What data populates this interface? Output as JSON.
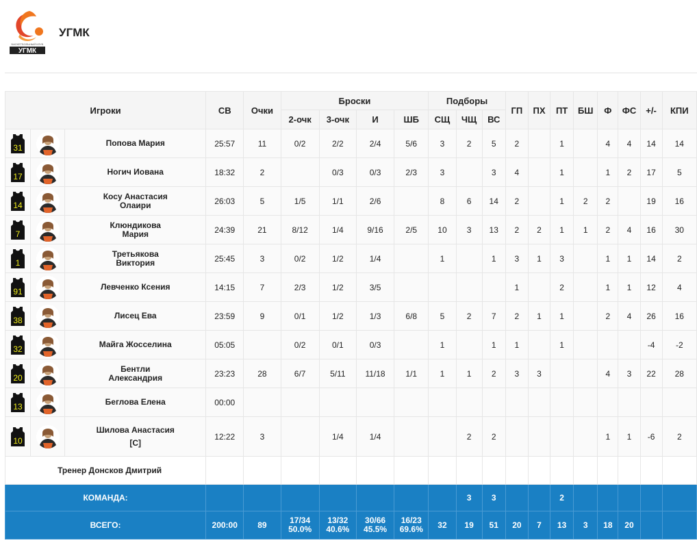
{
  "team": {
    "name": "УГМК",
    "logo_text_small": "БАСКЕТБОЛЬНЫЙ КЛУБ",
    "logo_text": "УГМК"
  },
  "headers": {
    "players": "Игроки",
    "sv": "СВ",
    "pts": "Очки",
    "shots": "Броски",
    "rebounds": "Подборы",
    "two": "2-очк",
    "three": "3-очк",
    "fg": "И",
    "ft": "ШБ",
    "off": "СЩ",
    "def": "ЧЩ",
    "tot": "ВС",
    "ast": "ГП",
    "to": "ПХ",
    "stl": "ПТ",
    "blk": "БШ",
    "pf": "Ф",
    "fd": "ФС",
    "pm": "+/-",
    "eff": "КПИ"
  },
  "players": [
    {
      "num": "31",
      "name": "Попова Мария",
      "sv": "25:57",
      "pts": "11",
      "two": "0/2",
      "three": "2/2",
      "fg": "2/4",
      "ft": "5/6",
      "off": "3",
      "def": "2",
      "tot": "5",
      "ast": "2",
      "to": "",
      "stl": "1",
      "blk": "",
      "pf": "4",
      "fd": "4",
      "pm": "14",
      "eff": "14"
    },
    {
      "num": "17",
      "name": "Ногич Иована",
      "sv": "18:32",
      "pts": "2",
      "two": "",
      "three": "0/3",
      "fg": "0/3",
      "ft": "2/3",
      "off": "3",
      "def": "",
      "tot": "3",
      "ast": "4",
      "to": "",
      "stl": "1",
      "blk": "",
      "pf": "1",
      "fd": "2",
      "pm": "17",
      "eff": "5"
    },
    {
      "num": "14",
      "name_l1": "Косу Анастасия",
      "name_l2": "Олаири",
      "sv": "26:03",
      "pts": "5",
      "two": "1/5",
      "three": "1/1",
      "fg": "2/6",
      "ft": "",
      "off": "8",
      "def": "6",
      "tot": "14",
      "ast": "2",
      "to": "",
      "stl": "1",
      "blk": "2",
      "pf": "2",
      "fd": "",
      "pm": "19",
      "eff": "16"
    },
    {
      "num": "7",
      "name_l1": "Клюндикова",
      "name_l2": "Мария",
      "sv": "24:39",
      "pts": "21",
      "two": "8/12",
      "three": "1/4",
      "fg": "9/16",
      "ft": "2/5",
      "off": "10",
      "def": "3",
      "tot": "13",
      "ast": "2",
      "to": "2",
      "stl": "1",
      "blk": "1",
      "pf": "2",
      "fd": "4",
      "pm": "16",
      "eff": "30"
    },
    {
      "num": "1",
      "name_l1": "Третьякова",
      "name_l2": "Виктория",
      "sv": "25:45",
      "pts": "3",
      "two": "0/2",
      "three": "1/2",
      "fg": "1/4",
      "ft": "",
      "off": "1",
      "def": "",
      "tot": "1",
      "ast": "3",
      "to": "1",
      "stl": "3",
      "blk": "",
      "pf": "1",
      "fd": "1",
      "pm": "14",
      "eff": "2"
    },
    {
      "num": "91",
      "name": "Левченко Ксения",
      "sv": "14:15",
      "pts": "7",
      "two": "2/3",
      "three": "1/2",
      "fg": "3/5",
      "ft": "",
      "off": "",
      "def": "",
      "tot": "",
      "ast": "1",
      "to": "",
      "stl": "2",
      "blk": "",
      "pf": "1",
      "fd": "1",
      "pm": "12",
      "eff": "4"
    },
    {
      "num": "38",
      "name": "Лисец Ева",
      "sv": "23:59",
      "pts": "9",
      "two": "0/1",
      "three": "1/2",
      "fg": "1/3",
      "ft": "6/8",
      "off": "5",
      "def": "2",
      "tot": "7",
      "ast": "2",
      "to": "1",
      "stl": "1",
      "blk": "",
      "pf": "2",
      "fd": "4",
      "pm": "26",
      "eff": "16"
    },
    {
      "num": "32",
      "name": "Майга Жосселина",
      "sv": "05:05",
      "pts": "",
      "two": "0/2",
      "three": "0/1",
      "fg": "0/3",
      "ft": "",
      "off": "1",
      "def": "",
      "tot": "1",
      "ast": "1",
      "to": "",
      "stl": "1",
      "blk": "",
      "pf": "",
      "fd": "",
      "pm": "-4",
      "eff": "-2"
    },
    {
      "num": "20",
      "name_l1": "Бентли",
      "name_l2": "Александрия",
      "sv": "23:23",
      "pts": "28",
      "two": "6/7",
      "three": "5/11",
      "fg": "11/18",
      "ft": "1/1",
      "off": "1",
      "def": "1",
      "tot": "2",
      "ast": "3",
      "to": "3",
      "stl": "",
      "blk": "",
      "pf": "4",
      "fd": "3",
      "pm": "22",
      "eff": "28"
    },
    {
      "num": "13",
      "name": "Беглова Елена",
      "sv": "00:00",
      "pts": "",
      "two": "",
      "three": "",
      "fg": "",
      "ft": "",
      "off": "",
      "def": "",
      "tot": "",
      "ast": "",
      "to": "",
      "stl": "",
      "blk": "",
      "pf": "",
      "fd": "",
      "pm": "",
      "eff": ""
    },
    {
      "num": "10",
      "name": "Шилова Анастасия",
      "captain": "[C]",
      "sv": "12:22",
      "pts": "3",
      "two": "",
      "three": "1/4",
      "fg": "1/4",
      "ft": "",
      "off": "",
      "def": "2",
      "tot": "2",
      "ast": "",
      "to": "",
      "stl": "",
      "blk": "",
      "pf": "1",
      "fd": "1",
      "pm": "-6",
      "eff": "2"
    }
  ],
  "coach": "Тренер Донсков Дмитрий",
  "team_row": {
    "label": "КОМАНДА:",
    "def": "3",
    "tot": "3",
    "stl": "2"
  },
  "total_row": {
    "label": "ВСЕГО:",
    "sv": "200:00",
    "pts": "89",
    "two": "17/34",
    "two_pct": "50.0%",
    "three": "13/32",
    "three_pct": "40.6%",
    "fg": "30/66",
    "fg_pct": "45.5%",
    "ft": "16/23",
    "ft_pct": "69.6%",
    "off": "32",
    "def": "19",
    "tot": "51",
    "ast": "20",
    "to": "7",
    "stl": "13",
    "blk": "3",
    "pf": "18",
    "fd": "20"
  },
  "colors": {
    "accent": "#1a80c4",
    "jersey": "#f0ee1a",
    "jersey_bg": "#111111",
    "logo_orange": "#f0761e"
  }
}
